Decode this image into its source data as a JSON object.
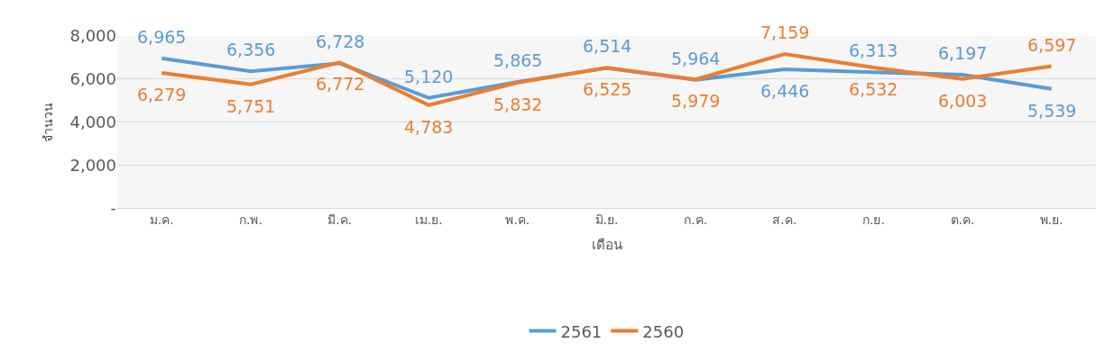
{
  "chart_data": {
    "type": "line",
    "xlabel": "เดือน",
    "ylabel": "จำนวน",
    "categories": [
      "ม.ค.",
      "ก.พ.",
      "มี.ค.",
      "เม.ย.",
      "พ.ค.",
      "มิ.ย.",
      "ก.ค.",
      "ส.ค.",
      "ก.ย.",
      "ต.ค.",
      "พ.ย."
    ],
    "series": [
      {
        "name": "2561",
        "color": "#5b9bd5",
        "values": [
          6965,
          6356,
          6728,
          5120,
          5865,
          6514,
          5964,
          6446,
          6313,
          6197,
          5539
        ],
        "value_labels": [
          "6,965",
          "6,356",
          "6,728",
          "5,120",
          "5,865",
          "6,514",
          "5,964",
          "6,446",
          "6,313",
          "6,197",
          "5,539"
        ]
      },
      {
        "name": "2560",
        "color": "#ed7d31",
        "values": [
          6279,
          5751,
          6772,
          4783,
          5832,
          6525,
          5979,
          7159,
          6532,
          6003,
          6597
        ],
        "value_labels": [
          "6,279",
          "5,751",
          "6,772",
          "4,783",
          "5,832",
          "6,525",
          "5,979",
          "7,159",
          "6,532",
          "6,003",
          "6,597"
        ]
      }
    ],
    "ylim": [
      0,
      8000
    ],
    "yticks": [
      {
        "value": 0,
        "label": "-"
      },
      {
        "value": 2000,
        "label": "2,000"
      },
      {
        "value": 4000,
        "label": "4,000"
      },
      {
        "value": 6000,
        "label": "6,000"
      },
      {
        "value": 8000,
        "label": "8,000"
      }
    ],
    "grid": "y",
    "legend": "bottom",
    "marker": "none",
    "line_style": "solid"
  }
}
